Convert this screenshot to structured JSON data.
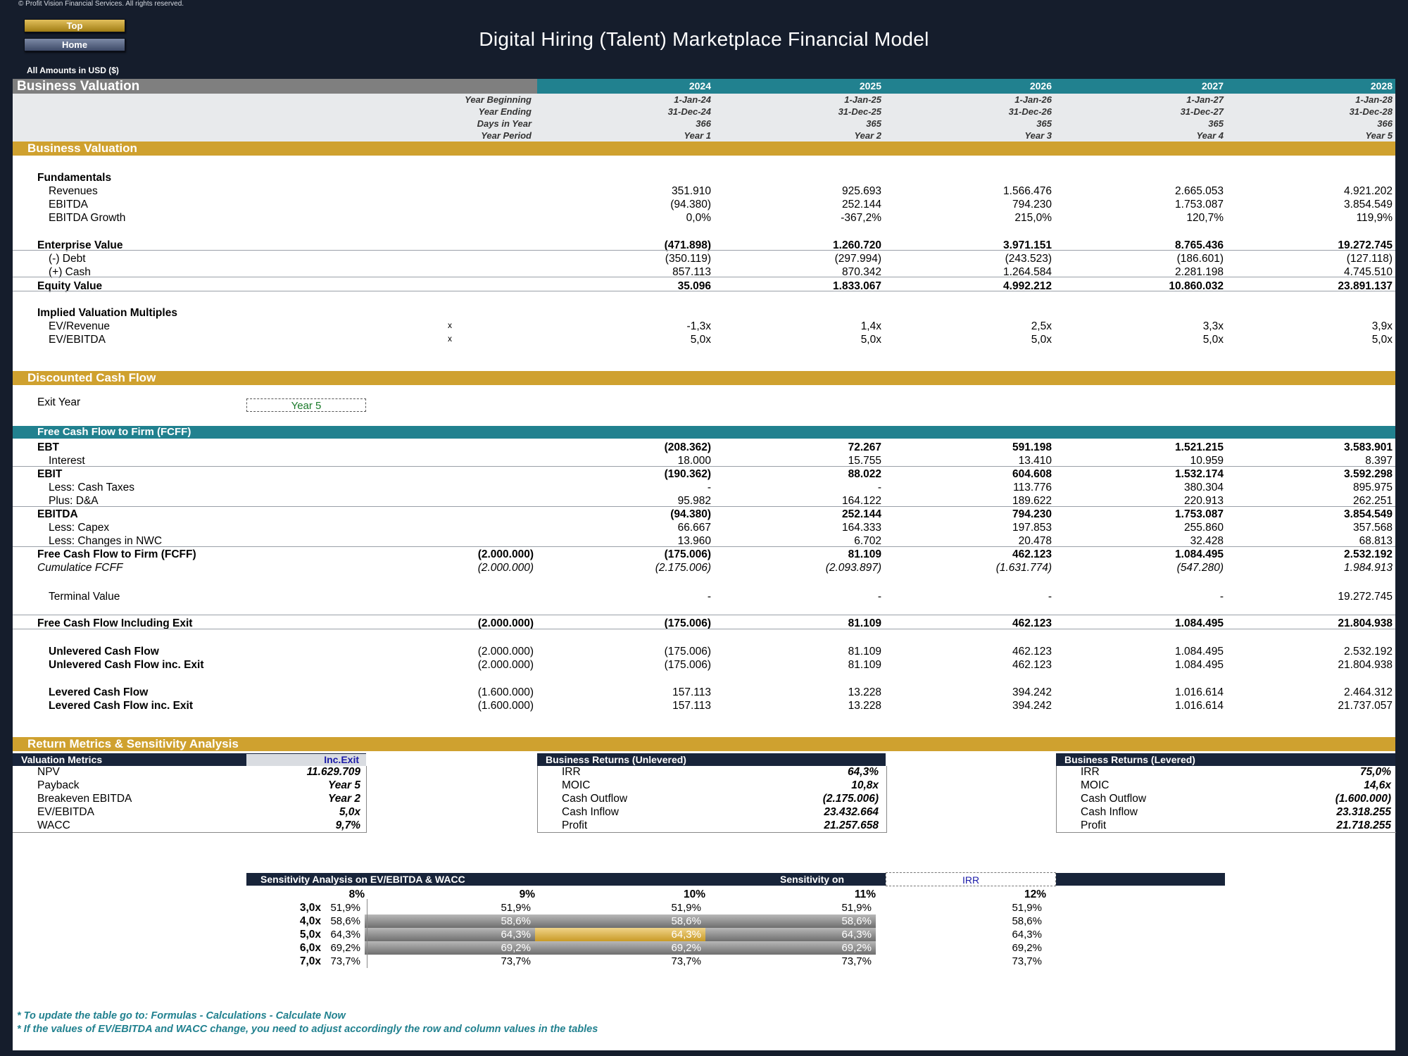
{
  "copyright": "© Profit Vision Financial Services. All rights reserved.",
  "nav": {
    "top": "Top",
    "home": "Home"
  },
  "title": "Digital Hiring (Talent) Marketplace Financial Model",
  "amounts_label": "All Amounts in  USD ($)",
  "header": {
    "section": "Business Valuation",
    "years": [
      "2024",
      "2025",
      "2026",
      "2027",
      "2028"
    ],
    "meta_labels": [
      "Year Beginning",
      "Year Ending",
      "Days in Year",
      "Year Period"
    ],
    "year_beginning": [
      "1-Jan-24",
      "1-Jan-25",
      "1-Jan-26",
      "1-Jan-27",
      "1-Jan-28"
    ],
    "year_ending": [
      "31-Dec-24",
      "31-Dec-25",
      "31-Dec-26",
      "31-Dec-27",
      "31-Dec-28"
    ],
    "days": [
      "366",
      "365",
      "365",
      "365",
      "366"
    ],
    "period": [
      "Year 1",
      "Year 2",
      "Year 3",
      "Year 4",
      "Year 5"
    ]
  },
  "valuation": {
    "section": "Business Valuation",
    "fundamentals_label": "Fundamentals",
    "rows": [
      {
        "label": "Revenues",
        "values": [
          "351.910",
          "925.693",
          "1.566.476",
          "2.665.053",
          "4.921.202"
        ]
      },
      {
        "label": "EBITDA",
        "values": [
          "(94.380)",
          "252.144",
          "794.230",
          "1.753.087",
          "3.854.549"
        ]
      },
      {
        "label": "EBITDA Growth",
        "values": [
          "0,0%",
          "-367,2%",
          "215,0%",
          "120,7%",
          "119,9%"
        ]
      }
    ],
    "ev": {
      "label": "Enterprise Value",
      "values": [
        "(471.898)",
        "1.260.720",
        "3.971.151",
        "8.765.436",
        "19.272.745"
      ]
    },
    "debt": {
      "label": "(-) Debt",
      "values": [
        "(350.119)",
        "(297.994)",
        "(243.523)",
        "(186.601)",
        "(127.118)"
      ]
    },
    "cash": {
      "label": "(+) Cash",
      "values": [
        "857.113",
        "870.342",
        "1.264.584",
        "2.281.198",
        "4.745.510"
      ]
    },
    "equity": {
      "label": "Equity Value",
      "values": [
        "35.096",
        "1.833.067",
        "4.992.212",
        "10.860.032",
        "23.891.137"
      ]
    },
    "multiples_label": "Implied Valuation Multiples",
    "multiples": [
      {
        "label": "EV/Revenue",
        "unit": "x",
        "values": [
          "-1,3x",
          "1,4x",
          "2,5x",
          "3,3x",
          "3,9x"
        ]
      },
      {
        "label": "EV/EBITDA",
        "unit": "x",
        "values": [
          "5,0x",
          "5,0x",
          "5,0x",
          "5,0x",
          "5,0x"
        ]
      }
    ]
  },
  "dcf": {
    "section": "Discounted Cash Flow",
    "exit_label": "Exit Year",
    "exit_value": "Year 5",
    "fcff_header": "Free Cash Flow to Firm (FCFF)",
    "rows": [
      {
        "label": "EBT",
        "bold": true,
        "indent": false,
        "initial": "",
        "values": [
          "(208.362)",
          "72.267",
          "591.198",
          "1.521.215",
          "3.583.901"
        ]
      },
      {
        "label": "Interest",
        "bold": false,
        "indent": true,
        "initial": "",
        "values": [
          "18.000",
          "15.755",
          "13.410",
          "10.959",
          "8.397"
        ]
      },
      {
        "label": "EBIT",
        "bold": true,
        "indent": false,
        "initial": "",
        "values": [
          "(190.362)",
          "88.022",
          "604.608",
          "1.532.174",
          "3.592.298"
        ]
      },
      {
        "label": "Less: Cash Taxes",
        "bold": false,
        "indent": true,
        "initial": "",
        "values": [
          "-",
          "-",
          "113.776",
          "380.304",
          "895.975"
        ]
      },
      {
        "label": "Plus: D&A",
        "bold": false,
        "indent": true,
        "initial": "",
        "values": [
          "95.982",
          "164.122",
          "189.622",
          "220.913",
          "262.251"
        ]
      },
      {
        "label": "EBITDA",
        "bold": true,
        "indent": false,
        "initial": "",
        "values": [
          "(94.380)",
          "252.144",
          "794.230",
          "1.753.087",
          "3.854.549"
        ]
      },
      {
        "label": "Less: Capex",
        "bold": false,
        "indent": true,
        "initial": "",
        "values": [
          "66.667",
          "164.333",
          "197.853",
          "255.860",
          "357.568"
        ]
      },
      {
        "label": "Less: Changes in NWC",
        "bold": false,
        "indent": true,
        "initial": "",
        "values": [
          "13.960",
          "6.702",
          "20.478",
          "32.428",
          "68.813"
        ]
      },
      {
        "label": "Free Cash Flow to Firm (FCFF)",
        "bold": true,
        "indent": false,
        "initial": "(2.000.000)",
        "values": [
          "(175.006)",
          "81.109",
          "462.123",
          "1.084.495",
          "2.532.192"
        ]
      },
      {
        "label": "Cumulatice FCFF",
        "bold": false,
        "italic": true,
        "indent": false,
        "initial": "(2.000.000)",
        "values": [
          "(2.175.006)",
          "(2.093.897)",
          "(1.631.774)",
          "(547.280)",
          "1.984.913"
        ]
      }
    ],
    "terminal": {
      "label": "Terminal Value",
      "values": [
        "-",
        "-",
        "-",
        "-",
        "19.272.745"
      ]
    },
    "fcf_exit": {
      "label": "Free Cash Flow Including Exit",
      "initial": "(2.000.000)",
      "values": [
        "(175.006)",
        "81.109",
        "462.123",
        "1.084.495",
        "21.804.938"
      ]
    },
    "flows": [
      {
        "label": "Unlevered Cash Flow",
        "initial": "(2.000.000)",
        "values": [
          "(175.006)",
          "81.109",
          "462.123",
          "1.084.495",
          "2.532.192"
        ]
      },
      {
        "label": "Unlevered Cash Flow inc. Exit",
        "initial": "(2.000.000)",
        "values": [
          "(175.006)",
          "81.109",
          "462.123",
          "1.084.495",
          "21.804.938"
        ]
      },
      {
        "label": "Levered Cash Flow",
        "initial": "(1.600.000)",
        "values": [
          "157.113",
          "13.228",
          "394.242",
          "1.016.614",
          "2.464.312"
        ]
      },
      {
        "label": "Levered Cash Flow inc. Exit",
        "initial": "(1.600.000)",
        "values": [
          "157.113",
          "13.228",
          "394.242",
          "1.016.614",
          "21.737.057"
        ]
      }
    ]
  },
  "returns": {
    "section": "Return Metrics & Sensitivity Analysis",
    "valuation_metrics": {
      "header": "Valuation Metrics",
      "toggle": "Inc.Exit",
      "rows": [
        {
          "label": "NPV",
          "value": "11.629.709"
        },
        {
          "label": "Payback",
          "value": "Year 5"
        },
        {
          "label": "Breakeven EBITDA",
          "value": "Year 2"
        },
        {
          "label": "EV/EBITDA",
          "value": "5,0x"
        },
        {
          "label": "WACC",
          "value": "9,7%"
        }
      ]
    },
    "unlevered": {
      "header": "Business Returns (Unlevered)",
      "rows": [
        {
          "label": "IRR",
          "value": "64,3%"
        },
        {
          "label": "MOIC",
          "value": "10,8x"
        },
        {
          "label": "Cash Outflow",
          "value": "(2.175.006)"
        },
        {
          "label": "Cash Inflow",
          "value": "23.432.664"
        },
        {
          "label": "Profit",
          "value": "21.257.658"
        }
      ]
    },
    "levered": {
      "header": "Business Returns (Levered)",
      "rows": [
        {
          "label": "IRR",
          "value": "75,0%"
        },
        {
          "label": "MOIC",
          "value": "14,6x"
        },
        {
          "label": "Cash Outflow",
          "value": "(1.600.000)"
        },
        {
          "label": "Cash Inflow",
          "value": "23.318.255"
        },
        {
          "label": "Profit",
          "value": "21.718.255"
        }
      ]
    }
  },
  "sensitivity": {
    "header": "Sensitivity Analysis on EV/EBITDA & WACC",
    "on_label": "Sensitivity on",
    "on_value": "IRR",
    "columns": [
      "8%",
      "9%",
      "10%",
      "11%",
      "12%"
    ],
    "rows": [
      {
        "label": "3,0x",
        "values": [
          "51,9%",
          "51,9%",
          "51,9%",
          "51,9%",
          "51,9%"
        ]
      },
      {
        "label": "4,0x",
        "values": [
          "58,6%",
          "58,6%",
          "58,6%",
          "58,6%",
          "58,6%"
        ]
      },
      {
        "label": "5,0x",
        "values": [
          "64,3%",
          "64,3%",
          "64,3%",
          "64,3%",
          "64,3%"
        ]
      },
      {
        "label": "6,0x",
        "values": [
          "69,2%",
          "69,2%",
          "69,2%",
          "69,2%",
          "69,2%"
        ]
      },
      {
        "label": "7,0x",
        "values": [
          "73,7%",
          "73,7%",
          "73,7%",
          "73,7%",
          "73,7%"
        ]
      }
    ]
  },
  "notes": [
    "* To update the table go to: Formulas - Calculations - Calculate Now",
    "* If the values of EV/EBITDA and WACC change, you need to adjust accordingly the row and column values in the tables"
  ],
  "colors": {
    "gold": "#cfa12f",
    "teal": "#21818f",
    "navy": "#18243a",
    "background": "#151d2c"
  }
}
